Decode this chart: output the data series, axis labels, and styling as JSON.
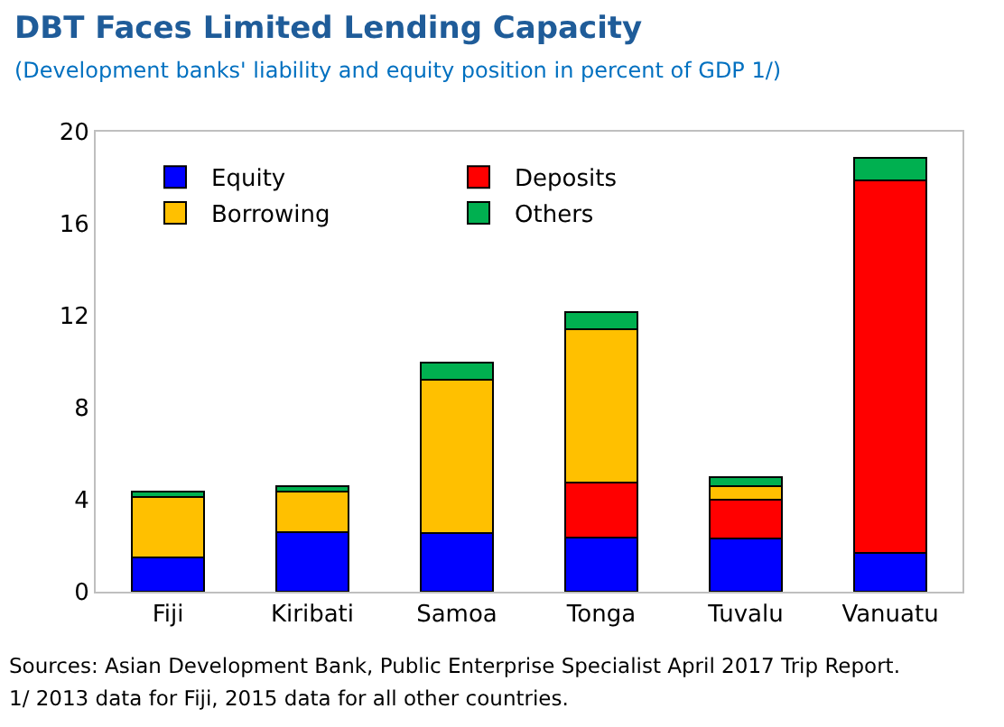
{
  "chart_data": {
    "type": "bar",
    "stacked": true,
    "title": "DBT Faces Limited Lending Capacity",
    "subtitle": "(Development banks' liability and equity position in percent of GDP 1/)",
    "categories": [
      "Fiji",
      "Kiribati",
      "Samoa",
      "Tonga",
      "Tuvalu",
      "Vanuatu"
    ],
    "series": [
      {
        "name": "Equity",
        "color": "#0000ff",
        "values": [
          1.5,
          2.6,
          2.55,
          2.35,
          2.3,
          1.7
        ]
      },
      {
        "name": "Deposits",
        "color": "#ff0000",
        "values": [
          0,
          0,
          0,
          2.4,
          1.7,
          16.2
        ]
      },
      {
        "name": "Borrowing",
        "color": "#ffc000",
        "values": [
          2.6,
          1.75,
          6.65,
          6.65,
          0.6,
          0
        ]
      },
      {
        "name": "Others",
        "color": "#00b050",
        "values": [
          0.25,
          0.25,
          0.75,
          0.75,
          0.4,
          0.95
        ]
      }
    ],
    "ylim": [
      0,
      20
    ],
    "yticks": [
      0,
      4,
      8,
      12,
      16,
      20
    ],
    "grid": false,
    "legend": "top left",
    "annotations": [
      "Sources: Asian Development Bank, Public Enterprise Specialist April 2017 Trip Report.",
      "1/ 2013 data for Fiji, 2015 data for all other countries."
    ]
  }
}
